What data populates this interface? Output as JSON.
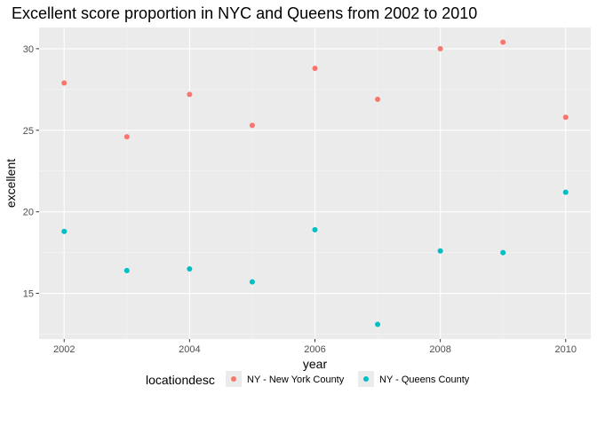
{
  "chart_data": {
    "type": "scatter",
    "title": "Excellent score proportion in NYC and Queens from 2002 to 2010",
    "xlabel": "year",
    "ylabel": "excellent",
    "xlim": [
      2001.6,
      2010.4
    ],
    "ylim": [
      12.2,
      31.3
    ],
    "x_ticks": [
      2002,
      2004,
      2006,
      2008,
      2010
    ],
    "x_tick_labels": [
      "2002",
      "2004",
      "2006",
      "2008",
      "2010"
    ],
    "y_ticks": [
      15,
      20,
      25,
      30
    ],
    "y_tick_labels": [
      "15",
      "20",
      "25",
      "30"
    ],
    "grid": true,
    "legend": {
      "title": "locationdesc",
      "position": "bottom",
      "entries": [
        "NY - New York County",
        "NY - Queens County"
      ]
    },
    "series": [
      {
        "name": "NY - New York County",
        "color": "#f8766d",
        "x": [
          2002,
          2003,
          2004,
          2005,
          2006,
          2007,
          2008,
          2009,
          2010
        ],
        "y": [
          27.9,
          24.6,
          27.2,
          25.3,
          28.8,
          26.9,
          30.0,
          30.4,
          25.8
        ]
      },
      {
        "name": "NY - Queens County",
        "color": "#00bfc4",
        "x": [
          2002,
          2003,
          2004,
          2005,
          2006,
          2007,
          2008,
          2009,
          2010
        ],
        "y": [
          18.8,
          16.4,
          16.5,
          15.7,
          18.9,
          13.1,
          17.6,
          17.5,
          21.2
        ]
      }
    ]
  }
}
